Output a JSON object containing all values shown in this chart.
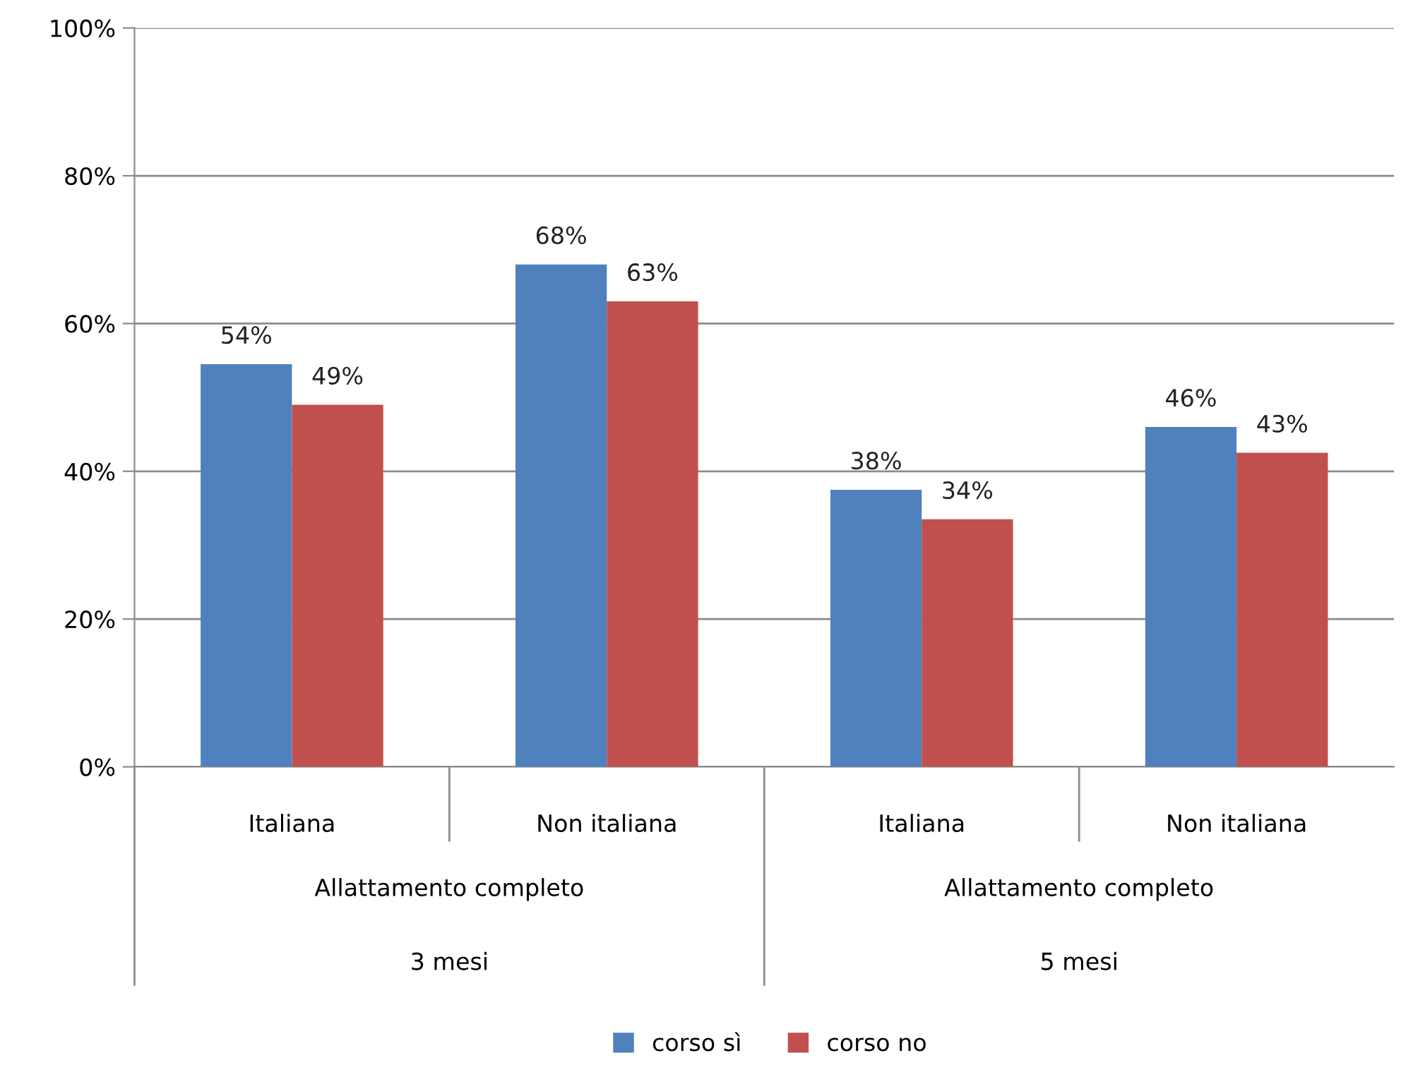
{
  "chart_data": {
    "type": "bar",
    "categories": [
      "Italiana",
      "Non italiana",
      "Italiana",
      "Non italiana"
    ],
    "series": [
      {
        "name": "corso sì",
        "color": "#4f81bd",
        "values": [
          54.5,
          68,
          37.5,
          46
        ],
        "value_labels": [
          "54%",
          "68%",
          "38%",
          "46%"
        ]
      },
      {
        "name": "corso no",
        "color": "#c0504d",
        "values": [
          49,
          63,
          33.5,
          42.5
        ],
        "value_labels": [
          "49%",
          "63%",
          "34%",
          "43%"
        ]
      }
    ],
    "ylim": [
      0,
      100
    ],
    "yticks": [
      {
        "value": 0,
        "label": "0%"
      },
      {
        "value": 20,
        "label": "20%"
      },
      {
        "value": 40,
        "label": "40%"
      },
      {
        "value": 60,
        "label": "60%"
      },
      {
        "value": 80,
        "label": "80%"
      },
      {
        "value": 100,
        "label": "100%"
      }
    ],
    "annotations": [
      "Allattamento completo",
      "3 mesi",
      "Allattamento completo",
      "5 mesi"
    ],
    "grid": "y",
    "legend": "bottom"
  }
}
